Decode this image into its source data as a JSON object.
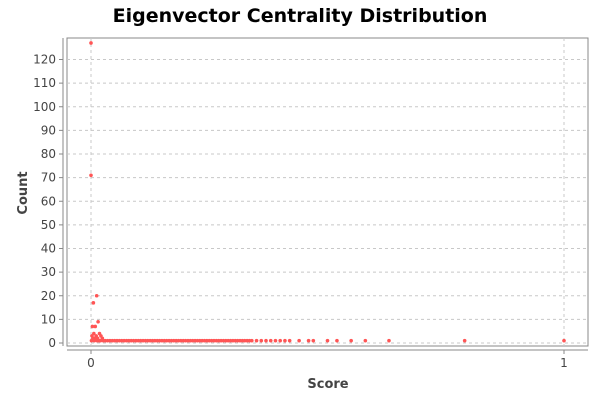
{
  "chart_data": {
    "type": "scatter",
    "title": "Eigenvector Centrality Distribution",
    "xlabel": "Score",
    "ylabel": "Count",
    "xlim": [
      0,
      1
    ],
    "ylim": [
      0,
      127
    ],
    "x_ticks": [
      0,
      1
    ],
    "x_tick_labels": [
      "0",
      "1"
    ],
    "y_ticks": [
      0,
      10,
      20,
      30,
      40,
      50,
      60,
      70,
      80,
      90,
      100,
      110,
      120
    ],
    "y_tick_labels": [
      "0",
      "10",
      "20",
      "30",
      "40",
      "50",
      "60",
      "70",
      "80",
      "90",
      "100",
      "110",
      "120"
    ],
    "grid": true,
    "legend": false,
    "point_color": "#ff5555",
    "series": [
      {
        "points": [
          {
            "x": 0.0,
            "y": 127
          },
          {
            "x": 0.0,
            "y": 71
          },
          {
            "x": 0.005,
            "y": 17
          },
          {
            "x": 0.012,
            "y": 20
          },
          {
            "x": 0.003,
            "y": 7
          },
          {
            "x": 0.009,
            "y": 7
          },
          {
            "x": 0.015,
            "y": 9
          },
          {
            "x": 0.006,
            "y": 4
          },
          {
            "x": 0.018,
            "y": 4
          },
          {
            "x": 0.021,
            "y": 3
          },
          {
            "x": 0.002,
            "y": 3
          },
          {
            "x": 0.011,
            "y": 3
          },
          {
            "x": 0.004,
            "y": 2
          },
          {
            "x": 0.008,
            "y": 2
          },
          {
            "x": 0.014,
            "y": 2
          },
          {
            "x": 0.024,
            "y": 2
          },
          {
            "x": 0.001,
            "y": 1
          },
          {
            "x": 0.007,
            "y": 1
          },
          {
            "x": 0.013,
            "y": 1
          },
          {
            "x": 0.017,
            "y": 1
          },
          {
            "x": 0.02,
            "y": 1
          },
          {
            "x": 0.026,
            "y": 1
          },
          {
            "x": 0.03,
            "y": 1
          },
          {
            "x": 0.035,
            "y": 1
          },
          {
            "x": 0.04,
            "y": 1
          },
          {
            "x": 0.045,
            "y": 1
          },
          {
            "x": 0.05,
            "y": 1
          },
          {
            "x": 0.055,
            "y": 1
          },
          {
            "x": 0.06,
            "y": 1
          },
          {
            "x": 0.065,
            "y": 1
          },
          {
            "x": 0.07,
            "y": 1
          },
          {
            "x": 0.075,
            "y": 1
          },
          {
            "x": 0.08,
            "y": 1
          },
          {
            "x": 0.085,
            "y": 1
          },
          {
            "x": 0.09,
            "y": 1
          },
          {
            "x": 0.095,
            "y": 1
          },
          {
            "x": 0.1,
            "y": 1
          },
          {
            "x": 0.105,
            "y": 1
          },
          {
            "x": 0.11,
            "y": 1
          },
          {
            "x": 0.115,
            "y": 1
          },
          {
            "x": 0.12,
            "y": 1
          },
          {
            "x": 0.125,
            "y": 1
          },
          {
            "x": 0.13,
            "y": 1
          },
          {
            "x": 0.135,
            "y": 1
          },
          {
            "x": 0.14,
            "y": 1
          },
          {
            "x": 0.145,
            "y": 1
          },
          {
            "x": 0.15,
            "y": 1
          },
          {
            "x": 0.155,
            "y": 1
          },
          {
            "x": 0.16,
            "y": 1
          },
          {
            "x": 0.165,
            "y": 1
          },
          {
            "x": 0.17,
            "y": 1
          },
          {
            "x": 0.175,
            "y": 1
          },
          {
            "x": 0.18,
            "y": 1
          },
          {
            "x": 0.185,
            "y": 1
          },
          {
            "x": 0.19,
            "y": 1
          },
          {
            "x": 0.195,
            "y": 1
          },
          {
            "x": 0.2,
            "y": 1
          },
          {
            "x": 0.205,
            "y": 1
          },
          {
            "x": 0.21,
            "y": 1
          },
          {
            "x": 0.215,
            "y": 1
          },
          {
            "x": 0.22,
            "y": 1
          },
          {
            "x": 0.225,
            "y": 1
          },
          {
            "x": 0.23,
            "y": 1
          },
          {
            "x": 0.235,
            "y": 1
          },
          {
            "x": 0.24,
            "y": 1
          },
          {
            "x": 0.245,
            "y": 1
          },
          {
            "x": 0.25,
            "y": 1
          },
          {
            "x": 0.255,
            "y": 1
          },
          {
            "x": 0.26,
            "y": 1
          },
          {
            "x": 0.265,
            "y": 1
          },
          {
            "x": 0.27,
            "y": 1
          },
          {
            "x": 0.275,
            "y": 1
          },
          {
            "x": 0.28,
            "y": 1
          },
          {
            "x": 0.285,
            "y": 1
          },
          {
            "x": 0.29,
            "y": 1
          },
          {
            "x": 0.295,
            "y": 1
          },
          {
            "x": 0.3,
            "y": 1
          },
          {
            "x": 0.305,
            "y": 1
          },
          {
            "x": 0.31,
            "y": 1
          },
          {
            "x": 0.315,
            "y": 1
          },
          {
            "x": 0.32,
            "y": 1
          },
          {
            "x": 0.325,
            "y": 1
          },
          {
            "x": 0.33,
            "y": 1
          },
          {
            "x": 0.335,
            "y": 1
          },
          {
            "x": 0.34,
            "y": 1
          },
          {
            "x": 0.35,
            "y": 1
          },
          {
            "x": 0.36,
            "y": 1
          },
          {
            "x": 0.37,
            "y": 1
          },
          {
            "x": 0.38,
            "y": 1
          },
          {
            "x": 0.39,
            "y": 1
          },
          {
            "x": 0.4,
            "y": 1
          },
          {
            "x": 0.41,
            "y": 1
          },
          {
            "x": 0.42,
            "y": 1
          },
          {
            "x": 0.44,
            "y": 1
          },
          {
            "x": 0.46,
            "y": 1
          },
          {
            "x": 0.47,
            "y": 1
          },
          {
            "x": 0.5,
            "y": 1
          },
          {
            "x": 0.52,
            "y": 1
          },
          {
            "x": 0.55,
            "y": 1
          },
          {
            "x": 0.58,
            "y": 1
          },
          {
            "x": 0.63,
            "y": 1
          },
          {
            "x": 0.79,
            "y": 1
          },
          {
            "x": 1.0,
            "y": 1
          }
        ]
      }
    ]
  }
}
